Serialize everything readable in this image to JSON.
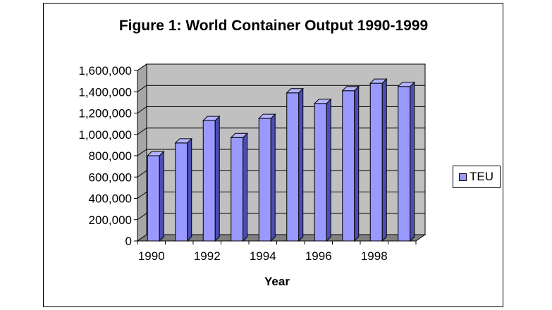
{
  "chart_data": {
    "type": "bar",
    "title": "Figure 1: World Container Output 1990-1999",
    "xlabel": "Year",
    "ylabel": "",
    "categories": [
      "1990",
      "1991",
      "1992",
      "1993",
      "1994",
      "1995",
      "1996",
      "1997",
      "1998",
      "1999"
    ],
    "x_tick_labels": [
      "1990",
      "",
      "1992",
      "",
      "1994",
      "",
      "1996",
      "",
      "1998",
      ""
    ],
    "series": [
      {
        "name": "TEU",
        "values": [
          800000,
          920000,
          1130000,
          970000,
          1150000,
          1390000,
          1290000,
          1410000,
          1480000,
          1450000
        ],
        "color": "#9999ff"
      }
    ],
    "ylim": [
      0,
      1600000
    ],
    "y_ticks": [
      "0",
      "200,000",
      "400,000",
      "600,000",
      "800,000",
      "1,000,000",
      "1,200,000",
      "1,400,000",
      "1,600,000"
    ],
    "grid": true,
    "legend_position": "right",
    "plot_background": "#c0c0c0",
    "floor_color": "#808080"
  }
}
